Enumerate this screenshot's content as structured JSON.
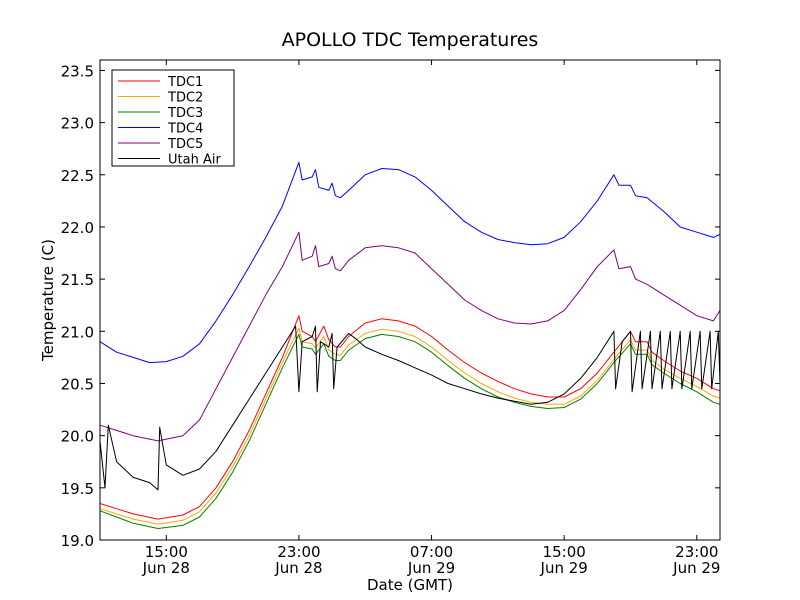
{
  "chart_data": {
    "type": "line",
    "title": "APOLLO TDC Temperatures",
    "xlabel": "Date (GMT)",
    "ylabel": "Temperature (C)",
    "ylim": [
      19.0,
      23.6
    ],
    "xlim_hours": [
      11.0,
      48.4
    ],
    "yticks": [
      "19.0",
      "19.5",
      "20.0",
      "20.5",
      "21.0",
      "21.5",
      "22.0",
      "22.5",
      "23.0",
      "23.5"
    ],
    "xticks": [
      {
        "time": "15:00",
        "date": "Jun 28",
        "hour": 15
      },
      {
        "time": "23:00",
        "date": "Jun 28",
        "hour": 23
      },
      {
        "time": "07:00",
        "date": "Jun 29",
        "hour": 31
      },
      {
        "time": "15:00",
        "date": "Jun 29",
        "hour": 39
      },
      {
        "time": "23:00",
        "date": "Jun 29",
        "hour": 47
      }
    ],
    "legend_position": "top-left",
    "series": [
      {
        "name": "TDC1",
        "color": "#ff0000",
        "points": [
          [
            11.0,
            19.35
          ],
          [
            12.0,
            19.3
          ],
          [
            13.0,
            19.25
          ],
          [
            14.5,
            19.2
          ],
          [
            16.0,
            19.24
          ],
          [
            17.0,
            19.32
          ],
          [
            18.0,
            19.5
          ],
          [
            19.0,
            19.75
          ],
          [
            20.0,
            20.05
          ],
          [
            21.0,
            20.4
          ],
          [
            22.0,
            20.75
          ],
          [
            23.0,
            21.15
          ],
          [
            23.2,
            21.0
          ],
          [
            23.8,
            20.95
          ],
          [
            24.0,
            20.9
          ],
          [
            24.5,
            21.05
          ],
          [
            24.8,
            20.92
          ],
          [
            25.2,
            20.85
          ],
          [
            25.5,
            20.85
          ],
          [
            26.0,
            20.95
          ],
          [
            27.0,
            21.08
          ],
          [
            28.0,
            21.12
          ],
          [
            29.0,
            21.1
          ],
          [
            30.0,
            21.05
          ],
          [
            31.0,
            20.95
          ],
          [
            32.0,
            20.82
          ],
          [
            33.0,
            20.7
          ],
          [
            34.0,
            20.6
          ],
          [
            35.0,
            20.52
          ],
          [
            36.0,
            20.45
          ],
          [
            37.0,
            20.4
          ],
          [
            38.0,
            20.37
          ],
          [
            39.0,
            20.37
          ],
          [
            40.0,
            20.45
          ],
          [
            41.0,
            20.6
          ],
          [
            42.0,
            20.8
          ],
          [
            43.0,
            21.0
          ],
          [
            43.3,
            20.9
          ],
          [
            44.0,
            20.9
          ],
          [
            44.3,
            20.8
          ],
          [
            45.0,
            20.72
          ],
          [
            46.0,
            20.62
          ],
          [
            47.0,
            20.55
          ],
          [
            48.0,
            20.45
          ],
          [
            48.4,
            20.43
          ]
        ]
      },
      {
        "name": "TDC2",
        "color": "#ffa500",
        "points": [
          [
            11.0,
            19.3
          ],
          [
            12.0,
            19.25
          ],
          [
            13.0,
            19.2
          ],
          [
            14.5,
            19.15
          ],
          [
            16.0,
            19.19
          ],
          [
            17.0,
            19.27
          ],
          [
            18.0,
            19.45
          ],
          [
            19.0,
            19.7
          ],
          [
            20.0,
            20.0
          ],
          [
            21.0,
            20.35
          ],
          [
            22.0,
            20.7
          ],
          [
            23.0,
            21.03
          ],
          [
            23.2,
            20.9
          ],
          [
            23.8,
            20.88
          ],
          [
            24.0,
            20.84
          ],
          [
            24.5,
            20.95
          ],
          [
            24.8,
            20.82
          ],
          [
            25.2,
            20.78
          ],
          [
            25.5,
            20.77
          ],
          [
            26.0,
            20.87
          ],
          [
            27.0,
            20.98
          ],
          [
            28.0,
            21.02
          ],
          [
            29.0,
            21.0
          ],
          [
            30.0,
            20.95
          ],
          [
            31.0,
            20.85
          ],
          [
            32.0,
            20.72
          ],
          [
            33.0,
            20.6
          ],
          [
            34.0,
            20.5
          ],
          [
            35.0,
            20.42
          ],
          [
            36.0,
            20.36
          ],
          [
            37.0,
            20.32
          ],
          [
            38.0,
            20.3
          ],
          [
            39.0,
            20.3
          ],
          [
            40.0,
            20.38
          ],
          [
            41.0,
            20.53
          ],
          [
            42.0,
            20.73
          ],
          [
            43.0,
            20.92
          ],
          [
            43.3,
            20.82
          ],
          [
            44.0,
            20.82
          ],
          [
            44.3,
            20.72
          ],
          [
            45.0,
            20.64
          ],
          [
            46.0,
            20.55
          ],
          [
            47.0,
            20.47
          ],
          [
            48.0,
            20.38
          ],
          [
            48.4,
            20.36
          ]
        ]
      },
      {
        "name": "TDC3",
        "color": "#008000",
        "points": [
          [
            11.0,
            19.28
          ],
          [
            12.0,
            19.22
          ],
          [
            13.0,
            19.16
          ],
          [
            14.5,
            19.11
          ],
          [
            16.0,
            19.14
          ],
          [
            17.0,
            19.22
          ],
          [
            18.0,
            19.4
          ],
          [
            19.0,
            19.65
          ],
          [
            20.0,
            19.95
          ],
          [
            21.0,
            20.3
          ],
          [
            22.0,
            20.65
          ],
          [
            23.0,
            20.97
          ],
          [
            23.2,
            20.85
          ],
          [
            23.8,
            20.83
          ],
          [
            24.0,
            20.78
          ],
          [
            24.5,
            20.88
          ],
          [
            24.8,
            20.76
          ],
          [
            25.2,
            20.72
          ],
          [
            25.5,
            20.72
          ],
          [
            26.0,
            20.82
          ],
          [
            27.0,
            20.93
          ],
          [
            28.0,
            20.97
          ],
          [
            29.0,
            20.95
          ],
          [
            30.0,
            20.9
          ],
          [
            31.0,
            20.8
          ],
          [
            32.0,
            20.67
          ],
          [
            33.0,
            20.55
          ],
          [
            34.0,
            20.45
          ],
          [
            35.0,
            20.37
          ],
          [
            36.0,
            20.32
          ],
          [
            37.0,
            20.28
          ],
          [
            38.0,
            20.26
          ],
          [
            39.0,
            20.27
          ],
          [
            40.0,
            20.35
          ],
          [
            41.0,
            20.5
          ],
          [
            42.0,
            20.7
          ],
          [
            43.0,
            20.88
          ],
          [
            43.3,
            20.78
          ],
          [
            44.0,
            20.78
          ],
          [
            44.3,
            20.68
          ],
          [
            45.0,
            20.6
          ],
          [
            46.0,
            20.5
          ],
          [
            47.0,
            20.42
          ],
          [
            48.0,
            20.32
          ],
          [
            48.4,
            20.3
          ]
        ]
      },
      {
        "name": "TDC4",
        "color": "#0000ff",
        "points": [
          [
            11.0,
            20.9
          ],
          [
            12.0,
            20.8
          ],
          [
            13.0,
            20.75
          ],
          [
            14.0,
            20.7
          ],
          [
            15.0,
            20.71
          ],
          [
            16.0,
            20.76
          ],
          [
            17.0,
            20.88
          ],
          [
            18.0,
            21.1
          ],
          [
            19.0,
            21.35
          ],
          [
            20.0,
            21.62
          ],
          [
            21.0,
            21.9
          ],
          [
            22.0,
            22.2
          ],
          [
            23.0,
            22.62
          ],
          [
            23.2,
            22.45
          ],
          [
            23.8,
            22.48
          ],
          [
            24.0,
            22.55
          ],
          [
            24.2,
            22.38
          ],
          [
            24.8,
            22.35
          ],
          [
            25.0,
            22.42
          ],
          [
            25.2,
            22.3
          ],
          [
            25.5,
            22.28
          ],
          [
            26.0,
            22.35
          ],
          [
            27.0,
            22.5
          ],
          [
            28.0,
            22.56
          ],
          [
            29.0,
            22.55
          ],
          [
            30.0,
            22.48
          ],
          [
            31.0,
            22.35
          ],
          [
            32.0,
            22.2
          ],
          [
            33.0,
            22.05
          ],
          [
            34.0,
            21.95
          ],
          [
            35.0,
            21.88
          ],
          [
            36.0,
            21.85
          ],
          [
            37.0,
            21.83
          ],
          [
            38.0,
            21.84
          ],
          [
            39.0,
            21.9
          ],
          [
            40.0,
            22.05
          ],
          [
            41.0,
            22.25
          ],
          [
            42.0,
            22.5
          ],
          [
            42.3,
            22.4
          ],
          [
            43.0,
            22.4
          ],
          [
            43.3,
            22.3
          ],
          [
            44.0,
            22.28
          ],
          [
            45.0,
            22.15
          ],
          [
            46.0,
            22.0
          ],
          [
            47.0,
            21.95
          ],
          [
            48.0,
            21.9
          ],
          [
            48.4,
            21.93
          ]
        ]
      },
      {
        "name": "TDC5",
        "color": "#800080",
        "points": [
          [
            11.0,
            20.1
          ],
          [
            12.0,
            20.05
          ],
          [
            13.0,
            20.0
          ],
          [
            14.5,
            19.95
          ],
          [
            16.0,
            20.0
          ],
          [
            17.0,
            20.15
          ],
          [
            18.0,
            20.45
          ],
          [
            19.0,
            20.75
          ],
          [
            20.0,
            21.05
          ],
          [
            21.0,
            21.35
          ],
          [
            22.0,
            21.62
          ],
          [
            23.0,
            21.95
          ],
          [
            23.2,
            21.68
          ],
          [
            23.8,
            21.72
          ],
          [
            24.0,
            21.82
          ],
          [
            24.2,
            21.62
          ],
          [
            24.8,
            21.65
          ],
          [
            25.0,
            21.72
          ],
          [
            25.2,
            21.6
          ],
          [
            25.5,
            21.58
          ],
          [
            26.0,
            21.68
          ],
          [
            27.0,
            21.8
          ],
          [
            28.0,
            21.82
          ],
          [
            29.0,
            21.8
          ],
          [
            30.0,
            21.75
          ],
          [
            31.0,
            21.6
          ],
          [
            32.0,
            21.45
          ],
          [
            33.0,
            21.3
          ],
          [
            34.0,
            21.2
          ],
          [
            35.0,
            21.12
          ],
          [
            36.0,
            21.08
          ],
          [
            37.0,
            21.07
          ],
          [
            38.0,
            21.1
          ],
          [
            39.0,
            21.2
          ],
          [
            40.0,
            21.4
          ],
          [
            41.0,
            21.62
          ],
          [
            42.0,
            21.78
          ],
          [
            42.3,
            21.6
          ],
          [
            43.0,
            21.62
          ],
          [
            43.3,
            21.5
          ],
          [
            44.0,
            21.45
          ],
          [
            45.0,
            21.35
          ],
          [
            46.0,
            21.25
          ],
          [
            47.0,
            21.15
          ],
          [
            48.0,
            21.1
          ],
          [
            48.4,
            21.2
          ]
        ]
      },
      {
        "name": "Utah Air",
        "color": "#000000",
        "points": [
          [
            11.0,
            19.95
          ],
          [
            11.3,
            19.5
          ],
          [
            11.5,
            20.1
          ],
          [
            12.0,
            19.75
          ],
          [
            13.0,
            19.6
          ],
          [
            14.0,
            19.55
          ],
          [
            14.5,
            19.48
          ],
          [
            14.6,
            20.08
          ],
          [
            15.0,
            19.72
          ],
          [
            16.0,
            19.62
          ],
          [
            17.0,
            19.68
          ],
          [
            18.0,
            19.85
          ],
          [
            19.0,
            20.1
          ],
          [
            20.0,
            20.35
          ],
          [
            21.0,
            20.6
          ],
          [
            22.0,
            20.85
          ],
          [
            22.8,
            21.05
          ],
          [
            23.0,
            20.42
          ],
          [
            23.2,
            20.9
          ],
          [
            23.8,
            20.95
          ],
          [
            24.0,
            21.05
          ],
          [
            24.1,
            20.42
          ],
          [
            24.3,
            20.9
          ],
          [
            24.8,
            20.85
          ],
          [
            25.0,
            20.98
          ],
          [
            25.1,
            20.45
          ],
          [
            25.3,
            20.85
          ],
          [
            26.0,
            20.98
          ],
          [
            26.5,
            20.92
          ],
          [
            27.0,
            20.85
          ],
          [
            28.0,
            20.78
          ],
          [
            29.0,
            20.72
          ],
          [
            30.0,
            20.65
          ],
          [
            31.0,
            20.58
          ],
          [
            32.0,
            20.5
          ],
          [
            33.0,
            20.45
          ],
          [
            34.0,
            20.4
          ],
          [
            35.0,
            20.36
          ],
          [
            36.0,
            20.33
          ],
          [
            37.0,
            20.3
          ],
          [
            38.0,
            20.32
          ],
          [
            39.0,
            20.4
          ],
          [
            40.0,
            20.55
          ],
          [
            41.0,
            20.75
          ],
          [
            42.0,
            21.0
          ],
          [
            42.1,
            20.45
          ],
          [
            42.5,
            20.9
          ],
          [
            43.0,
            21.0
          ],
          [
            43.1,
            20.42
          ],
          [
            43.6,
            21.0
          ],
          [
            43.7,
            20.45
          ],
          [
            44.2,
            21.0
          ],
          [
            44.3,
            20.45
          ],
          [
            44.8,
            21.0
          ],
          [
            44.9,
            20.45
          ],
          [
            45.4,
            21.0
          ],
          [
            45.5,
            20.45
          ],
          [
            46.0,
            21.0
          ],
          [
            46.1,
            20.45
          ],
          [
            46.6,
            21.0
          ],
          [
            46.7,
            20.45
          ],
          [
            47.2,
            21.0
          ],
          [
            47.3,
            20.45
          ],
          [
            47.8,
            21.0
          ],
          [
            47.9,
            20.45
          ],
          [
            48.3,
            21.0
          ],
          [
            48.4,
            20.5
          ]
        ]
      }
    ]
  }
}
